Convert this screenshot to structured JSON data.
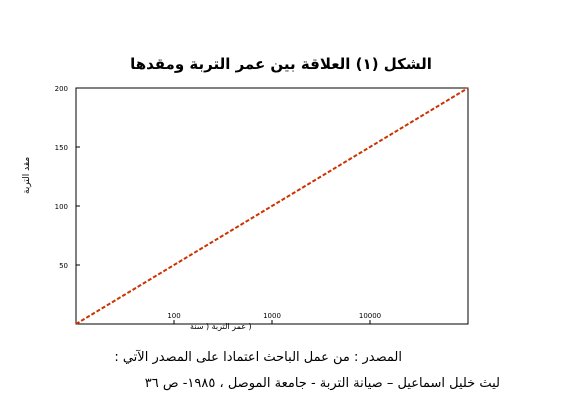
{
  "title": "الشكل (١) العلاقة بين عمر التربة ومقدها",
  "source": {
    "line1": "المصدر : من عمل الباحث اعتمادا على المصدر الآتي :",
    "line2": "ليث خليل اسماعيل – صيانة التربة - جامعة الموصل ، ١٩٨٥- ص ٣٦"
  },
  "chart_data": {
    "type": "line",
    "title": "الشكل (١) العلاقة بين عمر التربة ومقدها",
    "xlabel": "( عمر التربة ( سنة",
    "ylabel": "مقد التربة",
    "xscale": "log",
    "xlim": [
      10,
      100000
    ],
    "ylim": [
      0,
      200
    ],
    "y_ticks": [
      {
        "value": 50,
        "label": "50"
      },
      {
        "value": 100,
        "label": "100"
      },
      {
        "value": 150,
        "label": "150"
      },
      {
        "value": 200,
        "label": "200"
      }
    ],
    "x_ticks": [
      {
        "value": 100,
        "label": "100"
      },
      {
        "value": 1000,
        "label": "1000"
      },
      {
        "value": 10000,
        "label": "10000"
      }
    ],
    "grid": false,
    "series": [
      {
        "name": "",
        "color": "#cc3300",
        "style": "dashed",
        "x": [
          10,
          100000
        ],
        "y": [
          0,
          200
        ]
      }
    ]
  }
}
